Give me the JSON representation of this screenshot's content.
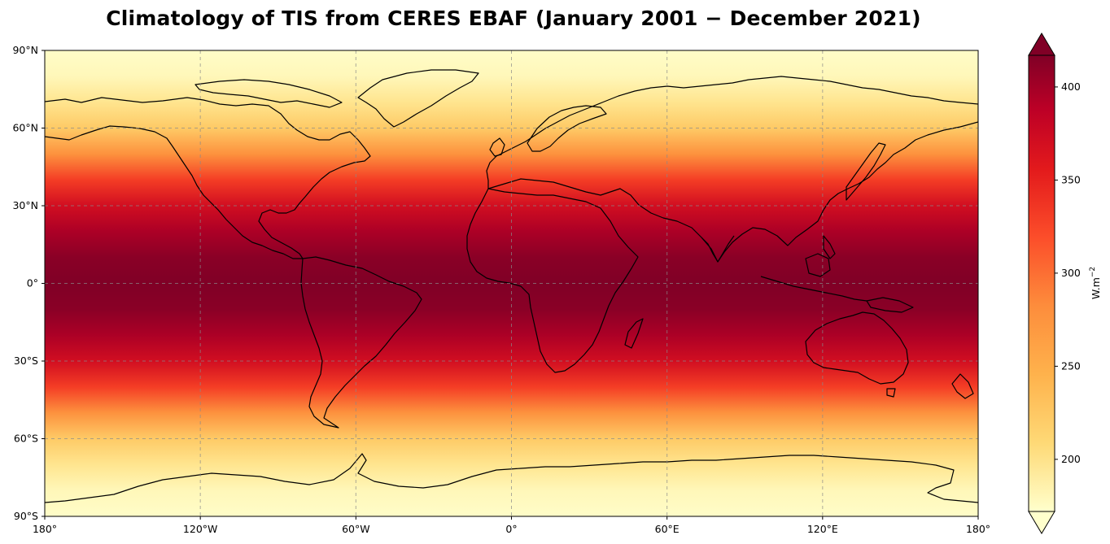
{
  "title": "Climatology of TIS from CERES EBAF (January 2001  −  December 2021)",
  "map": {
    "projection": "PlateCarree",
    "variable": "TIS",
    "colormap": "YlOrRd",
    "lon_ticks": [
      "180°",
      "120°W",
      "60°W",
      "0°",
      "60°E",
      "120°E",
      "180°"
    ],
    "lat_ticks": [
      "90°N",
      "60°N",
      "30°N",
      "0°",
      "30°S",
      "60°S",
      "90°S"
    ],
    "gridlines": true
  },
  "colorbar": {
    "ticks": [
      "400",
      "350",
      "300",
      "250",
      "200"
    ],
    "label_main": "W.m",
    "label_sup": "−2",
    "extend": "both"
  },
  "chart_data": {
    "type": "heatmap",
    "title": "Climatology of TIS from CERES EBAF (January 2001  −  December 2021)",
    "xlabel": "",
    "ylabel": "",
    "x_range_deg": [
      -180,
      180
    ],
    "y_range_deg": [
      -90,
      90
    ],
    "colorbar_range": [
      172,
      417
    ],
    "zonal_profile": {
      "lat": [
        90,
        80,
        70,
        60,
        50,
        40,
        30,
        20,
        10,
        0,
        -10,
        -20,
        -30,
        -40,
        -50,
        -60,
        -70,
        -80,
        -90
      ],
      "tis": [
        175,
        185,
        215,
        245,
        290,
        335,
        370,
        395,
        412,
        417,
        412,
        395,
        370,
        335,
        290,
        245,
        215,
        185,
        175
      ]
    }
  }
}
